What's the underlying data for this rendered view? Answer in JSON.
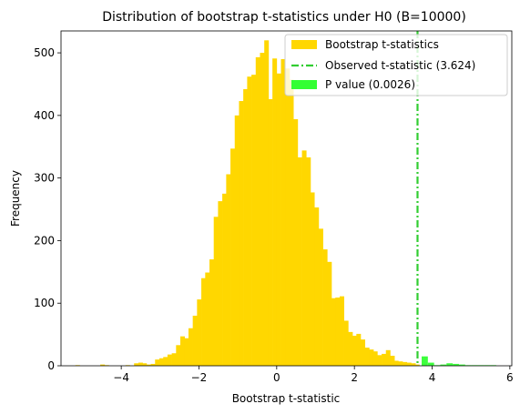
{
  "chart_data": {
    "type": "bar",
    "title": "Distribution of bootstrap t-statistics under H0 (B=10000)",
    "xlabel": "Bootstrap t-statistic",
    "ylabel": "Frequency",
    "xlim": [
      -5.55,
      6.05
    ],
    "ylim": [
      0,
      535
    ],
    "xticks": [
      -4,
      -2,
      0,
      2,
      4,
      6
    ],
    "yticks": [
      0,
      100,
      200,
      300,
      400,
      500
    ],
    "bin_width": 0.108,
    "observed_t": 3.624,
    "legend_position": "top-right",
    "colors": {
      "histogram": "#FFD700",
      "observed_line": "#32CD32",
      "pvalue": "#33FF33"
    },
    "legend": [
      {
        "label": "Bootstrap t-statistics",
        "kind": "patch",
        "color": "#FFD700"
      },
      {
        "label": "Observed t-statistic (3.624)",
        "kind": "line",
        "color": "#32CD32"
      },
      {
        "label": "P value (0.0026)",
        "kind": "patch",
        "color": "#33FF33"
      }
    ],
    "series": [
      {
        "name": "Bootstrap t-statistics",
        "bins_start": [
          -5.18,
          -5.07,
          -4.97,
          -4.86,
          -4.75,
          -4.64,
          -4.54,
          -4.43,
          -4.32,
          -4.21,
          -4.1,
          -4.0,
          -3.89,
          -3.78,
          -3.67,
          -3.56,
          -3.46,
          -3.35,
          -3.24,
          -3.13,
          -3.02,
          -2.92,
          -2.81,
          -2.7,
          -2.59,
          -2.48,
          -2.38,
          -2.27,
          -2.16,
          -2.05,
          -1.94,
          -1.84,
          -1.73,
          -1.62,
          -1.51,
          -1.4,
          -1.3,
          -1.19,
          -1.08,
          -0.97,
          -0.86,
          -0.76,
          -0.65,
          -0.54,
          -0.43,
          -0.32,
          -0.22,
          -0.11,
          0.0,
          0.11,
          0.22,
          0.32,
          0.43,
          0.54,
          0.65,
          0.76,
          0.86,
          0.97,
          1.08,
          1.19,
          1.3,
          1.4,
          1.51,
          1.62,
          1.73,
          1.84,
          1.94,
          2.05,
          2.16,
          2.27,
          2.38,
          2.48,
          2.59,
          2.7,
          2.81,
          2.92,
          3.02,
          3.13,
          3.24,
          3.35,
          3.46,
          3.56
        ],
        "counts": [
          1,
          0,
          0,
          0,
          0,
          0,
          2,
          1,
          0,
          0,
          0,
          0,
          1,
          0,
          4,
          5,
          4,
          2,
          3,
          10,
          12,
          14,
          18,
          20,
          33,
          47,
          44,
          60,
          80,
          106,
          140,
          149,
          170,
          238,
          263,
          275,
          306,
          347,
          400,
          423,
          442,
          462,
          465,
          493,
          500,
          520,
          426,
          491,
          467,
          490,
          475,
          457,
          394,
          333,
          344,
          333,
          277,
          253,
          219,
          186,
          166,
          108,
          109,
          111,
          72,
          54,
          48,
          51,
          42,
          29,
          26,
          23,
          17,
          19,
          25,
          16,
          8,
          7,
          6,
          5,
          4,
          2
        ]
      },
      {
        "name": "P value (0.0026)",
        "bins_start": [
          3.73,
          3.89,
          4.05,
          4.21,
          4.37,
          4.53,
          4.69,
          4.85,
          5.01,
          5.17,
          5.33,
          5.49
        ],
        "counts": [
          15,
          5,
          1,
          2,
          4,
          3,
          2,
          1,
          1,
          1,
          1,
          1
        ],
        "bin_width": 0.16
      }
    ]
  }
}
